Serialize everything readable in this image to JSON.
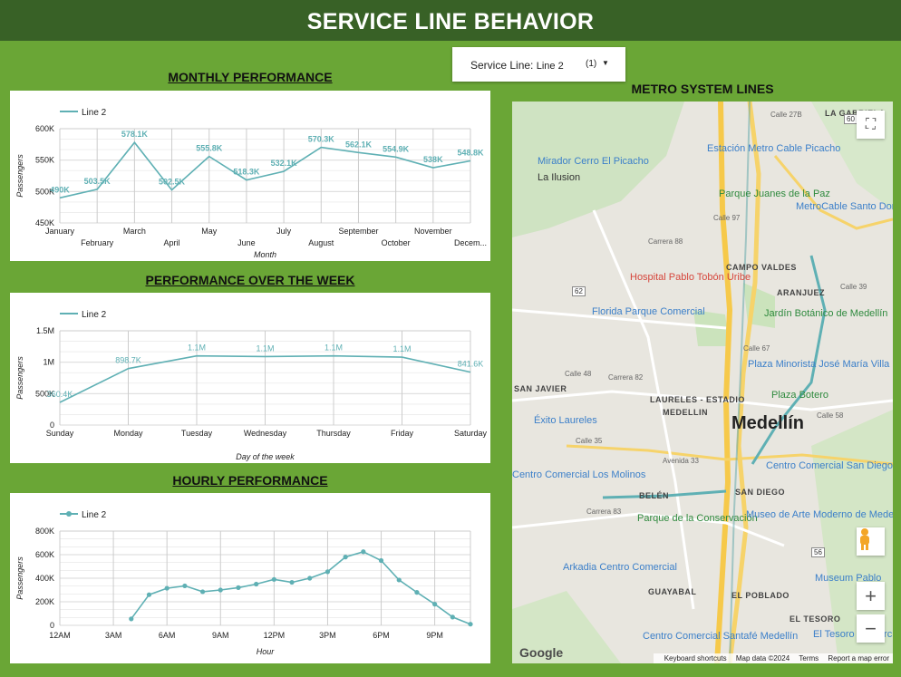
{
  "page": {
    "title": "SERVICE LINE BEHAVIOR"
  },
  "filter": {
    "label": "Service Line",
    "value": "Line 2",
    "count": "(1)"
  },
  "sections": {
    "monthly": "MONTHLY PERFORMANCE",
    "weekly": "PERFORMANCE OVER THE WEEK",
    "hourly": "HOURLY PERFORMANCE",
    "map": "METRO SYSTEM LINES"
  },
  "colors": {
    "header": "#386126",
    "background": "#6aa636",
    "series": "#5fb0b4"
  },
  "chart_data": [
    {
      "type": "line",
      "title": "MONTHLY PERFORMANCE",
      "xlabel": "Month",
      "ylabel": "Passengers",
      "legend": "top-left",
      "series": [
        {
          "name": "Line 2",
          "values": [
            490000,
            503500,
            578100,
            502500,
            555800,
            518300,
            532100,
            570300,
            562100,
            554900,
            538000,
            548800
          ]
        }
      ],
      "categories": [
        "January",
        "February",
        "March",
        "April",
        "May",
        "June",
        "July",
        "August",
        "September",
        "October",
        "November",
        "Decem..."
      ],
      "data_labels": [
        "490K",
        "503.5K",
        "578.1K",
        "502.5K",
        "555.8K",
        "518.3K",
        "532.1K",
        "570.3K",
        "562.1K",
        "554.9K",
        "538K",
        "548.8K"
      ],
      "ylim": [
        450000,
        600000
      ],
      "yticks": [
        "450K",
        "500K",
        "550K",
        "600K"
      ]
    },
    {
      "type": "line",
      "title": "PERFORMANCE OVER THE WEEK",
      "xlabel": "Day of the week",
      "ylabel": "Passengers",
      "legend": "top-left",
      "series": [
        {
          "name": "Line 2",
          "values": [
            360400,
            898700,
            1100000,
            1090000,
            1100000,
            1080000,
            841600
          ]
        }
      ],
      "categories": [
        "Sunday",
        "Monday",
        "Tuesday",
        "Wednesday",
        "Thursday",
        "Friday",
        "Saturday"
      ],
      "data_labels": [
        "360.4K",
        "898.7K",
        "1.1M",
        "1.1M",
        "1.1M",
        "1.1M",
        "841.6K"
      ],
      "ylim": [
        0,
        1500000
      ],
      "yticks": [
        "0",
        "500K",
        "1M",
        "1.5M"
      ]
    },
    {
      "type": "line",
      "title": "HOURLY PERFORMANCE",
      "xlabel": "Hour",
      "ylabel": "Passengers",
      "legend": "top-left",
      "series": [
        {
          "name": "Line 2",
          "x": [
            4,
            5,
            6,
            7,
            8,
            9,
            10,
            11,
            12,
            13,
            14,
            15,
            16,
            17,
            18,
            19,
            20,
            21,
            22,
            23
          ],
          "values": [
            55000,
            260000,
            315000,
            335000,
            285000,
            300000,
            320000,
            350000,
            390000,
            365000,
            400000,
            455000,
            580000,
            625000,
            550000,
            385000,
            280000,
            180000,
            70000,
            10000
          ]
        }
      ],
      "xticks": [
        0,
        3,
        6,
        9,
        12,
        15,
        18,
        21
      ],
      "xtick_labels": [
        "12AM",
        "3AM",
        "6AM",
        "9AM",
        "12PM",
        "3PM",
        "6PM",
        "9PM"
      ],
      "xlim": [
        0,
        23
      ],
      "ylim": [
        0,
        800000
      ],
      "yticks": [
        "0",
        "200K",
        "400K",
        "600K",
        "800K"
      ]
    }
  ],
  "map": {
    "labels": [
      {
        "text": "LA GABRIELA",
        "kind": "area"
      },
      {
        "text": "Calle 27B",
        "kind": "street"
      },
      {
        "text": "Estación Metro Cable Picacho",
        "kind": "poi"
      },
      {
        "text": "Mirador Cerro El Picacho",
        "kind": "poi"
      },
      {
        "text": "La Ilusion",
        "kind": "place"
      },
      {
        "text": "Parque Juanes de la Paz",
        "kind": "park"
      },
      {
        "text": "MetroCable Santo Domingo",
        "kind": "poi"
      },
      {
        "text": "Calle 97",
        "kind": "street"
      },
      {
        "text": "Carrera 88",
        "kind": "street"
      },
      {
        "text": "CAMPO VALDES",
        "kind": "area"
      },
      {
        "text": "Hospital Pablo Tobón Uribe",
        "kind": "hospital"
      },
      {
        "text": "ARANJUEZ",
        "kind": "area"
      },
      {
        "text": "Florida Parque Comercial",
        "kind": "poi"
      },
      {
        "text": "Jardín Botánico de Medellín",
        "kind": "park"
      },
      {
        "text": "Calle 67",
        "kind": "street"
      },
      {
        "text": "Plaza Minorista José María Villa",
        "kind": "poi"
      },
      {
        "text": "Calle 48",
        "kind": "street"
      },
      {
        "text": "Carrera 82",
        "kind": "street"
      },
      {
        "text": "SAN JAVIER",
        "kind": "area"
      },
      {
        "text": "Plaza Botero",
        "kind": "park"
      },
      {
        "text": "LAURELES - ESTADIO",
        "kind": "area"
      },
      {
        "text": "MEDELLIN",
        "kind": "area"
      },
      {
        "text": "Éxito Laureles",
        "kind": "poi"
      },
      {
        "text": "Medellín",
        "kind": "city"
      },
      {
        "text": "Calle 58",
        "kind": "street"
      },
      {
        "text": "Calle 35",
        "kind": "street"
      },
      {
        "text": "Avenida 33",
        "kind": "street"
      },
      {
        "text": "Centro Comercial Los Molinos",
        "kind": "poi"
      },
      {
        "text": "Centro Comercial San Diego",
        "kind": "poi"
      },
      {
        "text": "BELÉN",
        "kind": "area"
      },
      {
        "text": "SAN DIEGO",
        "kind": "area"
      },
      {
        "text": "Parque de la Conservación",
        "kind": "park"
      },
      {
        "text": "Museo de Arte Moderno de Medellín",
        "kind": "poi"
      },
      {
        "text": "Carrera 83",
        "kind": "street"
      },
      {
        "text": "Arkadia Centro Comercial",
        "kind": "poi"
      },
      {
        "text": "GUAYABAL",
        "kind": "area"
      },
      {
        "text": "Museum Pablo",
        "kind": "poi"
      },
      {
        "text": "EL POBLADO",
        "kind": "area"
      },
      {
        "text": "EL TESORO",
        "kind": "area"
      },
      {
        "text": "Centro Comercial Santafé Medellín",
        "kind": "poi"
      },
      {
        "text": "El Tesoro Comercial",
        "kind": "poi"
      },
      {
        "text": "62",
        "kind": "shield"
      },
      {
        "text": "60",
        "kind": "shield"
      },
      {
        "text": "56",
        "kind": "shield"
      },
      {
        "text": "Calle 39",
        "kind": "street"
      }
    ],
    "logo": "Google",
    "footer": {
      "shortcuts": "Keyboard shortcuts",
      "data": "Map data ©2024",
      "terms": "Terms",
      "report": "Report a map error"
    },
    "controls": {
      "fullscreen": "fullscreen-icon",
      "pegman": "pegman-icon",
      "zoom_in": "+",
      "zoom_out": "−"
    }
  }
}
